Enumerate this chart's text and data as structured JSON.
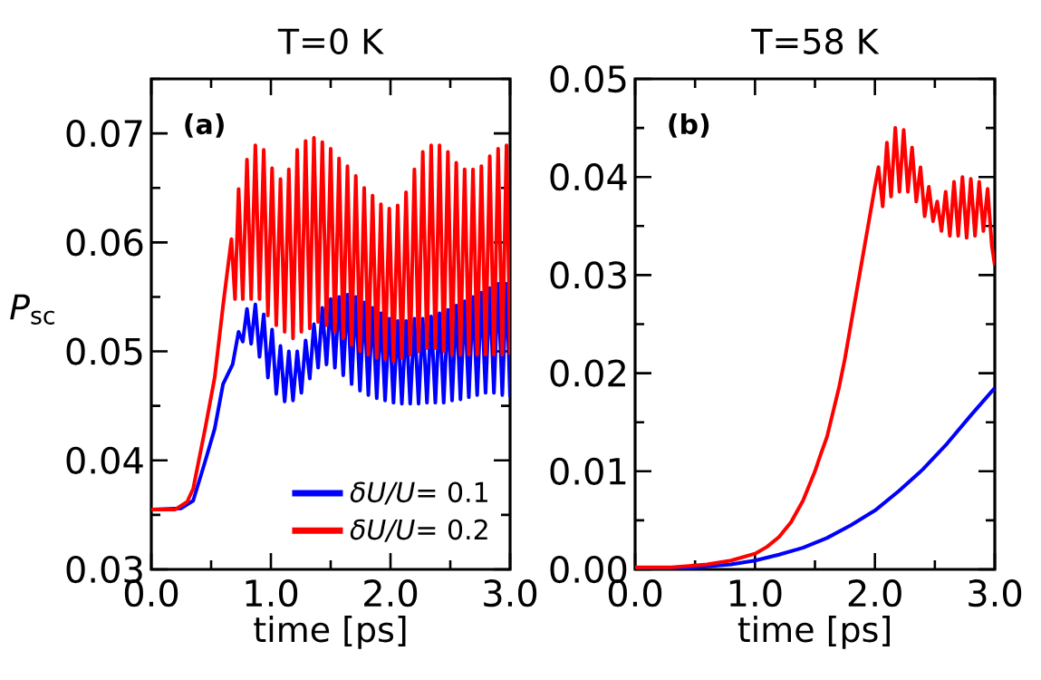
{
  "chart_data": [
    {
      "type": "line",
      "title": "T=0 K",
      "xlabel": "time [ps]",
      "ylabel": "*P*$_{sc}$",
      "annotations": [
        "(a)"
      ],
      "legend": "bottom right",
      "xlim": [
        0,
        3
      ],
      "ylim": [
        0.03,
        0.075
      ],
      "xticks": [
        {
          "value": 0,
          "label": "0.0"
        },
        {
          "value": 0.5,
          "label": null
        },
        {
          "value": 1,
          "label": "1.0"
        },
        {
          "value": 1.5,
          "label": null
        },
        {
          "value": 2,
          "label": "2.0"
        },
        {
          "value": 2.5,
          "label": null
        },
        {
          "value": 3,
          "label": "3.0"
        }
      ],
      "yticks": [
        {
          "value": 0.03,
          "label": "0.03"
        },
        {
          "value": 0.035,
          "label": null
        },
        {
          "value": 0.04,
          "label": "0.04"
        },
        {
          "value": 0.045,
          "label": null
        },
        {
          "value": 0.05,
          "label": "0.05"
        },
        {
          "value": 0.055,
          "label": null
        },
        {
          "value": 0.06,
          "label": "0.06"
        },
        {
          "value": 0.065,
          "label": null
        },
        {
          "value": 0.07,
          "label": "0.07"
        },
        {
          "value": 0.075,
          "label": null
        }
      ],
      "series": [
        {
          "name": "*δU/U*= 0.1",
          "color": "#0000ff",
          "x": [
            0,
            0.25,
            0.35,
            0.45,
            0.53,
            0.6,
            0.68,
            0.73,
            0.765,
            0.8,
            0.835,
            0.87,
            0.905,
            0.94,
            0.975,
            1.01,
            1.045,
            1.08,
            1.115,
            1.15,
            1.185,
            1.22,
            1.255,
            1.29,
            1.325,
            1.36,
            1.395,
            1.43,
            1.465,
            1.5,
            1.535,
            1.57,
            1.605,
            1.64,
            1.675,
            1.71,
            1.745,
            1.78,
            1.815,
            1.85,
            1.885,
            1.92,
            1.955,
            1.99,
            2.025,
            2.06,
            2.095,
            2.13,
            2.165,
            2.2,
            2.235,
            2.27,
            2.305,
            2.34,
            2.375,
            2.41,
            2.445,
            2.48,
            2.515,
            2.55,
            2.585,
            2.62,
            2.655,
            2.69,
            2.725,
            2.76,
            2.795,
            2.83,
            2.865,
            2.9,
            2.935,
            2.97,
            3.0
          ],
          "values": [
            0.0355,
            0.0356,
            0.0363,
            0.0399,
            0.0429,
            0.047,
            0.0488,
            0.0518,
            0.0509,
            0.0539,
            0.0507,
            0.0543,
            0.0495,
            0.0534,
            0.0476,
            0.052,
            0.0461,
            0.0505,
            0.0454,
            0.05,
            0.0455,
            0.05,
            0.0462,
            0.051,
            0.0475,
            0.0525,
            0.0485,
            0.054,
            0.0488,
            0.0548,
            0.0485,
            0.055,
            0.0478,
            0.0552,
            0.047,
            0.055,
            0.0464,
            0.0545,
            0.046,
            0.054,
            0.0457,
            0.0535,
            0.0455,
            0.053,
            0.0453,
            0.0528,
            0.0452,
            0.0528,
            0.0452,
            0.053,
            0.0452,
            0.053,
            0.0453,
            0.0532,
            0.0453,
            0.0535,
            0.0453,
            0.0538,
            0.0455,
            0.0542,
            0.0456,
            0.0546,
            0.0458,
            0.055,
            0.046,
            0.0554,
            0.0462,
            0.0558,
            0.0462,
            0.0562,
            0.046,
            0.0562,
            0.0458
          ]
        },
        {
          "name": "*δU/U*= 0.2",
          "color": "#ff0000",
          "x": [
            0,
            0.2,
            0.3,
            0.35,
            0.45,
            0.53,
            0.6,
            0.67,
            0.7,
            0.73,
            0.765,
            0.8,
            0.835,
            0.87,
            0.905,
            0.94,
            0.975,
            1.01,
            1.045,
            1.08,
            1.115,
            1.15,
            1.185,
            1.22,
            1.255,
            1.29,
            1.325,
            1.36,
            1.395,
            1.43,
            1.465,
            1.5,
            1.535,
            1.57,
            1.605,
            1.64,
            1.675,
            1.71,
            1.745,
            1.78,
            1.815,
            1.85,
            1.885,
            1.92,
            1.955,
            1.99,
            2.025,
            2.06,
            2.095,
            2.13,
            2.165,
            2.2,
            2.235,
            2.27,
            2.305,
            2.34,
            2.375,
            2.41,
            2.445,
            2.48,
            2.515,
            2.55,
            2.585,
            2.62,
            2.655,
            2.69,
            2.725,
            2.76,
            2.795,
            2.83,
            2.865,
            2.9,
            2.935,
            2.97,
            3.0
          ],
          "values": [
            0.0355,
            0.0355,
            0.0362,
            0.0374,
            0.0429,
            0.0476,
            0.0542,
            0.0603,
            0.0548,
            0.0649,
            0.0548,
            0.0676,
            0.0548,
            0.0689,
            0.0548,
            0.0685,
            0.0533,
            0.0668,
            0.0524,
            0.0658,
            0.0518,
            0.0667,
            0.0512,
            0.0685,
            0.0518,
            0.0693,
            0.0521,
            0.0696,
            0.0527,
            0.0692,
            0.0524,
            0.0686,
            0.0518,
            0.0677,
            0.0512,
            0.067,
            0.0506,
            0.0661,
            0.05,
            0.065,
            0.0497,
            0.0643,
            0.0494,
            0.0635,
            0.0493,
            0.0631,
            0.0491,
            0.0634,
            0.0494,
            0.0646,
            0.0497,
            0.0667,
            0.05,
            0.0683,
            0.0503,
            0.0689,
            0.0503,
            0.0689,
            0.05,
            0.0683,
            0.0497,
            0.0673,
            0.0497,
            0.0667,
            0.0497,
            0.0667,
            0.0497,
            0.067,
            0.0497,
            0.0679,
            0.0497,
            0.0686,
            0.0497,
            0.0689,
            0.0497
          ]
        }
      ]
    },
    {
      "type": "line",
      "title": "T=58 K",
      "xlabel": "time [ps]",
      "annotations": [
        "(b)"
      ],
      "xlim": [
        0,
        3
      ],
      "ylim": [
        0,
        0.05
      ],
      "xticks": [
        {
          "value": 0,
          "label": "0.0"
        },
        {
          "value": 0.5,
          "label": null
        },
        {
          "value": 1,
          "label": "1.0"
        },
        {
          "value": 1.5,
          "label": null
        },
        {
          "value": 2,
          "label": "2.0"
        },
        {
          "value": 2.5,
          "label": null
        },
        {
          "value": 3,
          "label": "3.0"
        }
      ],
      "yticks": [
        {
          "value": 0,
          "label": "0.00"
        },
        {
          "value": 0.005,
          "label": null
        },
        {
          "value": 0.01,
          "label": "0.01"
        },
        {
          "value": 0.015,
          "label": null
        },
        {
          "value": 0.02,
          "label": "0.02"
        },
        {
          "value": 0.025,
          "label": null
        },
        {
          "value": 0.03,
          "label": "0.03"
        },
        {
          "value": 0.035,
          "label": null
        },
        {
          "value": 0.04,
          "label": "0.04"
        },
        {
          "value": 0.045,
          "label": null
        },
        {
          "value": 0.05,
          "label": "0.05"
        }
      ],
      "series": [
        {
          "color": "#0000ff",
          "x": [
            0,
            0.5,
            0.8,
            1.0,
            1.2,
            1.4,
            1.6,
            1.8,
            2.0,
            2.2,
            2.4,
            2.6,
            2.8,
            3.0
          ],
          "values": [
            0.0001,
            0.0002,
            0.0005,
            0.0009,
            0.0015,
            0.0022,
            0.0032,
            0.0045,
            0.006,
            0.008,
            0.0102,
            0.0128,
            0.0157,
            0.0185
          ]
        },
        {
          "color": "#ff0000",
          "x": [
            0,
            0.3,
            0.6,
            0.8,
            1.0,
            1.1,
            1.2,
            1.3,
            1.4,
            1.5,
            1.55,
            1.6,
            1.65,
            1.7,
            1.75,
            1.8,
            1.85,
            1.9,
            1.95,
            2.0,
            2.03,
            2.065,
            2.1,
            2.135,
            2.17,
            2.205,
            2.24,
            2.275,
            2.31,
            2.345,
            2.38,
            2.415,
            2.45,
            2.485,
            2.52,
            2.555,
            2.59,
            2.625,
            2.66,
            2.695,
            2.73,
            2.765,
            2.8,
            2.835,
            2.87,
            2.905,
            2.94,
            2.975,
            3.0
          ],
          "values": [
            0.0002,
            0.0002,
            0.0005,
            0.0009,
            0.0016,
            0.0023,
            0.0033,
            0.0048,
            0.007,
            0.01,
            0.0118,
            0.0135,
            0.016,
            0.0185,
            0.0215,
            0.025,
            0.0285,
            0.032,
            0.0355,
            0.039,
            0.041,
            0.037,
            0.0435,
            0.038,
            0.045,
            0.0385,
            0.0448,
            0.0385,
            0.043,
            0.0375,
            0.041,
            0.036,
            0.039,
            0.0355,
            0.0375,
            0.0345,
            0.0385,
            0.034,
            0.0395,
            0.034,
            0.04,
            0.0338,
            0.0398,
            0.034,
            0.0395,
            0.0345,
            0.0388,
            0.033,
            0.031
          ]
        }
      ]
    }
  ]
}
